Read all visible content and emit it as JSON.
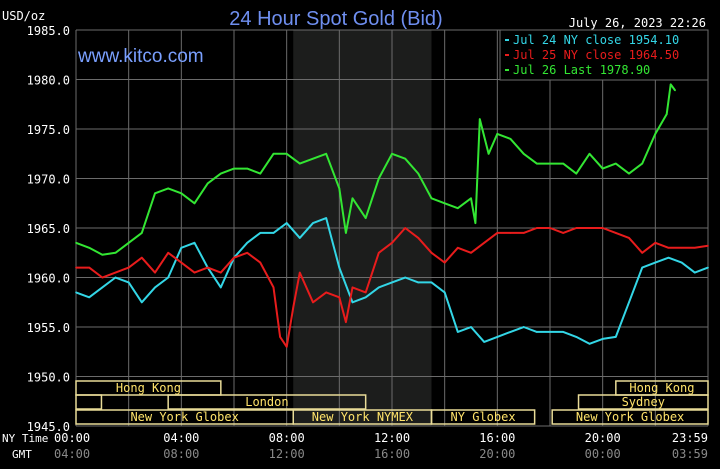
{
  "chart_data": {
    "type": "line",
    "title": "24 Hour Spot Gold (Bid)",
    "ylabel": "USD/oz",
    "timestamp": "July 26, 2023 22:26",
    "watermark": "www.kitco.com",
    "ylim": [
      1945.0,
      1985.0
    ],
    "yticks": [
      "1985.0",
      "1980.0",
      "1975.0",
      "1970.0",
      "1965.0",
      "1960.0",
      "1955.0",
      "1950.0",
      "1945.0"
    ],
    "xlim_hours": [
      0,
      24
    ],
    "x_axis_rows": [
      {
        "label": "NY Time",
        "ticks": [
          "00:00",
          "04:00",
          "08:00",
          "12:00",
          "16:00",
          "20:00",
          "23:59"
        ]
      },
      {
        "label": "GMT",
        "ticks": [
          "04:00",
          "08:00",
          "12:00",
          "16:00",
          "20:00",
          "00:00",
          "03:59"
        ]
      }
    ],
    "grid": true,
    "legend_placement": "top-right",
    "shaded_period": [
      "08:15",
      "13:30"
    ],
    "colors": {
      "title": "#6f8ff0",
      "watermark": "#7aa0ff",
      "grid": "#6b6b6b",
      "shade": "#1c1d1c",
      "session": "#e9dc98",
      "session_text": "#ffe36a",
      "gmt": "#8a8a8a"
    },
    "series": [
      {
        "name": "Jul 24 NY close 1954.10",
        "color": "#33d6e6",
        "x": [
          "00:00",
          "00:30",
          "01:00",
          "01:30",
          "02:00",
          "02:30",
          "03:00",
          "03:30",
          "04:00",
          "04:30",
          "05:00",
          "05:30",
          "06:00",
          "06:30",
          "07:00",
          "07:30",
          "08:00",
          "08:30",
          "09:00",
          "09:30",
          "10:00",
          "10:30",
          "11:00",
          "11:30",
          "12:00",
          "12:30",
          "13:00",
          "13:30",
          "14:00",
          "14:30",
          "15:00",
          "15:30",
          "16:00",
          "16:30",
          "17:00",
          "17:30",
          "18:00",
          "18:30",
          "19:00",
          "19:30",
          "20:00",
          "20:30",
          "21:00",
          "21:30",
          "22:00",
          "22:30",
          "23:00",
          "23:30",
          "23:59"
        ],
        "values": [
          1958.5,
          1958,
          1959,
          1960,
          1959.5,
          1957.5,
          1959,
          1960,
          1963,
          1963.5,
          1961,
          1959,
          1962,
          1963.5,
          1964.5,
          1964.5,
          1965.5,
          1964,
          1965.5,
          1966,
          1961,
          1957.5,
          1958,
          1959,
          1959.5,
          1960,
          1959.5,
          1959.5,
          1958.5,
          1954.5,
          1955,
          1953.5,
          1954,
          1954.5,
          1955,
          1954.5,
          1954.5,
          1954.5,
          1954,
          1953.3,
          1953.8,
          1954,
          1957.5,
          1961,
          1961.5,
          1962,
          1961.5,
          1960.5,
          1961
        ]
      },
      {
        "name": "Jul 25 NY close 1964.50",
        "color": "#e81c1c",
        "x": [
          "00:00",
          "00:30",
          "01:00",
          "01:30",
          "02:00",
          "02:30",
          "03:00",
          "03:30",
          "04:00",
          "04:30",
          "05:00",
          "05:30",
          "06:00",
          "06:30",
          "07:00",
          "07:30",
          "07:45",
          "08:00",
          "08:15",
          "08:30",
          "09:00",
          "09:30",
          "10:00",
          "10:15",
          "10:30",
          "11:00",
          "11:30",
          "12:00",
          "12:30",
          "13:00",
          "13:30",
          "14:00",
          "14:30",
          "15:00",
          "15:30",
          "16:00",
          "16:30",
          "17:00",
          "17:30",
          "18:00",
          "18:30",
          "19:00",
          "19:30",
          "20:00",
          "20:30",
          "21:00",
          "21:30",
          "22:00",
          "22:30",
          "23:00",
          "23:30",
          "23:59"
        ],
        "values": [
          1961,
          1961,
          1960,
          1960.5,
          1961,
          1962,
          1960.5,
          1962.5,
          1961.5,
          1960.5,
          1961,
          1960.5,
          1962,
          1962.5,
          1961.5,
          1959,
          1954,
          1953,
          1957,
          1960.5,
          1957.5,
          1958.5,
          1958,
          1955.5,
          1959,
          1958.5,
          1962.5,
          1963.5,
          1965,
          1964,
          1962.5,
          1961.5,
          1963,
          1962.5,
          1963.5,
          1964.5,
          1964.5,
          1964.5,
          1965,
          1965,
          1964.5,
          1965,
          1965,
          1965,
          1964.5,
          1964,
          1962.5,
          1963.5,
          1963,
          1963,
          1963,
          1963.2
        ]
      },
      {
        "name": "Jul 26 Last 1978.90",
        "color": "#33e633",
        "x": [
          "00:00",
          "00:30",
          "01:00",
          "01:30",
          "02:00",
          "02:30",
          "03:00",
          "03:30",
          "04:00",
          "04:30",
          "05:00",
          "05:30",
          "06:00",
          "06:30",
          "07:00",
          "07:30",
          "08:00",
          "08:30",
          "09:00",
          "09:30",
          "10:00",
          "10:15",
          "10:30",
          "11:00",
          "11:30",
          "12:00",
          "12:30",
          "13:00",
          "13:30",
          "14:00",
          "14:30",
          "15:00",
          "15:10",
          "15:20",
          "15:40",
          "16:00",
          "16:30",
          "17:00",
          "17:30",
          "18:00",
          "18:30",
          "19:00",
          "19:30",
          "20:00",
          "20:30",
          "21:00",
          "21:30",
          "22:00",
          "22:26",
          "22:35",
          "22:45"
        ],
        "values": [
          1963.5,
          1963,
          1962.3,
          1962.5,
          1963.5,
          1964.5,
          1968.5,
          1969,
          1968.5,
          1967.5,
          1969.5,
          1970.5,
          1971,
          1971,
          1970.5,
          1972.5,
          1972.5,
          1971.5,
          1972,
          1972.5,
          1969,
          1964.5,
          1968,
          1966,
          1970,
          1972.5,
          1972,
          1970.5,
          1968,
          1967.5,
          1967,
          1968,
          1965.5,
          1976,
          1972.5,
          1974.5,
          1974,
          1972.5,
          1971.5,
          1971.5,
          1971.5,
          1970.5,
          1972.5,
          1971,
          1971.5,
          1970.5,
          1971.5,
          1974.5,
          1976.5,
          1979.5,
          1978.9
        ]
      }
    ],
    "sessions": [
      {
        "label": "Hong Kong",
        "row": 1,
        "start": "00:00",
        "end": "05:30"
      },
      {
        "label": "Hong Kong",
        "row": 1,
        "start": "20:30",
        "end": "23:59"
      },
      {
        "label": "",
        "row": 2,
        "start": "00:00",
        "end": "00:58"
      },
      {
        "label": "London",
        "row": 2,
        "start": "03:30",
        "end": "11:00"
      },
      {
        "label": "Sydney",
        "row": 2,
        "start": "19:05",
        "end": "23:59"
      },
      {
        "label": "New York Globex",
        "row": 3,
        "start": "00:00",
        "end": "08:15"
      },
      {
        "label": "New York NYMEX",
        "row": 3,
        "start": "08:15",
        "end": "13:30"
      },
      {
        "label": "NY Globex",
        "row": 3,
        "start": "13:30",
        "end": "17:25"
      },
      {
        "label": "New York Globex",
        "row": 3,
        "start": "18:05",
        "end": "23:59"
      }
    ]
  }
}
